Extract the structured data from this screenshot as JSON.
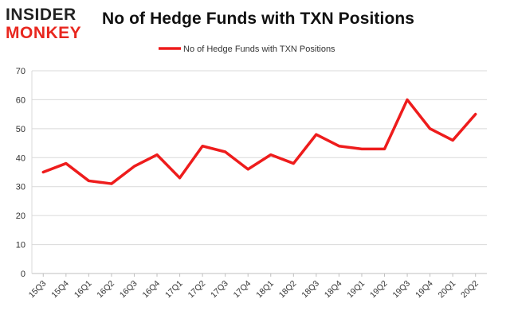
{
  "logo": {
    "line1": "INSIDER",
    "line2": "MONKEY",
    "colors": [
      "#222222",
      "#e8271f"
    ]
  },
  "chart_data": {
    "type": "line",
    "title": "No of Hedge Funds with TXN Positions",
    "xlabel": "",
    "ylabel": "",
    "categories": [
      "15Q3",
      "15Q4",
      "16Q1",
      "16Q2",
      "16Q3",
      "16Q4",
      "17Q1",
      "17Q2",
      "17Q3",
      "17Q4",
      "18Q1",
      "18Q2",
      "18Q3",
      "18Q4",
      "19Q1",
      "19Q2",
      "19Q3",
      "19Q4",
      "20Q1",
      "20Q2"
    ],
    "series": [
      {
        "name": "No of Hedge Funds with TXN Positions",
        "color": "#ee1c1c",
        "values": [
          35,
          38,
          32,
          31,
          37,
          41,
          33,
          44,
          42,
          36,
          41,
          38,
          48,
          44,
          43,
          43,
          60,
          50,
          46,
          55
        ]
      }
    ],
    "ylim": [
      0,
      70
    ],
    "yticks": [
      0,
      10,
      20,
      30,
      40,
      50,
      60,
      70
    ],
    "grid": true,
    "legend": "top-center"
  }
}
